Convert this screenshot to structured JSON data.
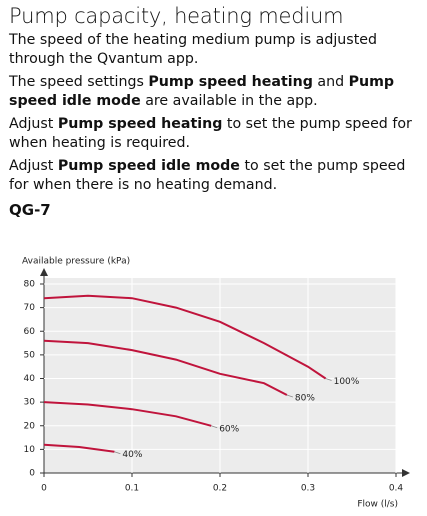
{
  "header": {
    "title": "Pump capacity, heating medium"
  },
  "paragraphs": [
    [
      {
        "text": "The speed of the heating medium pump is adjusted through the Qvantum app."
      }
    ],
    [
      {
        "text": "The speed settings "
      },
      {
        "text": "Pump speed heating",
        "bold": true
      },
      {
        "text": " and "
      },
      {
        "text": "Pump speed idle mode",
        "bold": true
      },
      {
        "text": " are available in the app."
      }
    ],
    [
      {
        "text": "Adjust "
      },
      {
        "text": "Pump speed heating",
        "bold": true
      },
      {
        "text": " to set the pump speed for when heating is required."
      }
    ],
    [
      {
        "text": "Adjust "
      },
      {
        "text": "Pump speed idle mode",
        "bold": true
      },
      {
        "text": " to set the pump speed for when there is no heating demand."
      }
    ]
  ],
  "subheading": "QG-7",
  "chart_data": {
    "type": "line",
    "y_label": "Available pressure (kPa)",
    "x_label": "Flow (l/s)",
    "xlim": [
      0,
      0.4
    ],
    "xticks": [
      0,
      0.1,
      0.2,
      0.3,
      0.4
    ],
    "ylim": [
      0,
      80
    ],
    "yticks": [
      0,
      10,
      20,
      30,
      40,
      50,
      60,
      70,
      80
    ],
    "grid": true,
    "series": [
      {
        "name": "100%",
        "color": "#c0143c",
        "x": [
          0,
          0.05,
          0.1,
          0.15,
          0.2,
          0.25,
          0.3,
          0.32
        ],
        "values": [
          74,
          75,
          74,
          70,
          64,
          55,
          45,
          40
        ]
      },
      {
        "name": "80%",
        "color": "#c0143c",
        "x": [
          0,
          0.05,
          0.1,
          0.15,
          0.2,
          0.25,
          0.276
        ],
        "values": [
          56,
          55,
          52,
          48,
          42,
          38,
          33
        ]
      },
      {
        "name": "60%",
        "color": "#c0143c",
        "x": [
          0,
          0.05,
          0.1,
          0.15,
          0.19
        ],
        "values": [
          30,
          29,
          27,
          24,
          20
        ]
      },
      {
        "name": "40%",
        "color": "#c0143c",
        "x": [
          0,
          0.04,
          0.08
        ],
        "values": [
          12,
          11,
          9
        ]
      }
    ]
  }
}
